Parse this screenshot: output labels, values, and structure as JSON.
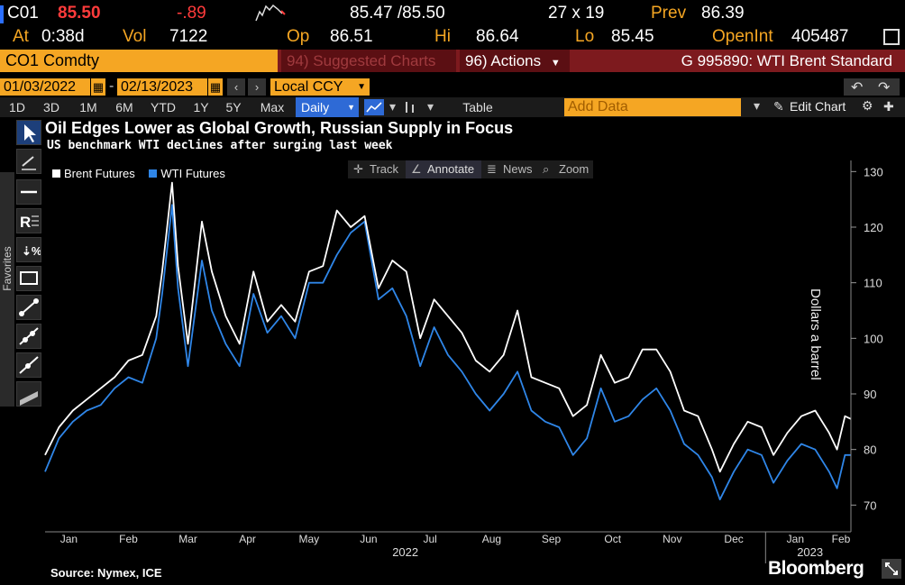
{
  "quote": {
    "ticker": "C01",
    "last": "85.50",
    "change": "-.89",
    "bid_ask": "85.47 /85.50",
    "size": "27 x 19",
    "prev_label": "Prev",
    "prev_value": "86.39"
  },
  "stats": {
    "at_label": "At",
    "at_value": "0:38d",
    "vol_label": "Vol",
    "vol_value": "7122",
    "op_label": "Op",
    "op_value": "86.51",
    "hi_label": "Hi",
    "hi_value": "86.64",
    "lo_label": "Lo",
    "lo_value": "85.45",
    "oi_label": "OpenInt",
    "oi_value": "405487"
  },
  "security_bar": {
    "security": "CO1 Comdty",
    "suggested": "94) Suggested Charts",
    "actions": "96) Actions",
    "page": "G 995890: WTI Brent Standard"
  },
  "date_range": {
    "start": "01/03/2022",
    "end": "02/13/2023",
    "currency": "Local CCY"
  },
  "toolbar": {
    "periods": [
      "1D",
      "3D",
      "1M",
      "6M",
      "YTD",
      "1Y",
      "5Y",
      "Max"
    ],
    "frequency": "Daily",
    "table": "Table",
    "add_data_placeholder": "Add Data",
    "edit_chart": "Edit Chart"
  },
  "sidebar": {
    "favorites": "Favorites"
  },
  "chart_tools": [
    "Track",
    "Annotate",
    "News",
    "Zoom"
  ],
  "colors": {
    "brent": "#ffffff",
    "wti": "#2f86e8",
    "accent": "#f5a623",
    "bar_red": "#7d1a1e"
  },
  "footer": {
    "source": "Source: Nymex, ICE",
    "brand": "Bloomberg"
  },
  "chart_data": {
    "type": "line",
    "title": "Oil Edges Lower as Global Growth, Russian Supply in Focus",
    "subtitle": "US benchmark WTI declines after surging last week",
    "ylabel": "Dollars a barrel",
    "ylim": [
      66,
      132
    ],
    "yticks": [
      70,
      80,
      90,
      100,
      110,
      120,
      130
    ],
    "x_ticks": [
      {
        "label": "Jan",
        "date": "2022-01-15"
      },
      {
        "label": "Feb",
        "date": "2022-02-14"
      },
      {
        "label": "Mar",
        "date": "2022-03-16"
      },
      {
        "label": "Apr",
        "date": "2022-04-15"
      },
      {
        "label": "May",
        "date": "2022-05-16"
      },
      {
        "label": "Jun",
        "date": "2022-06-15"
      },
      {
        "label": "Jul",
        "date": "2022-07-16"
      },
      {
        "label": "Aug",
        "date": "2022-08-16"
      },
      {
        "label": "Sep",
        "date": "2022-09-15"
      },
      {
        "label": "Oct",
        "date": "2022-10-16"
      },
      {
        "label": "Nov",
        "date": "2022-11-15"
      },
      {
        "label": "Dec",
        "date": "2022-12-16"
      },
      {
        "label": "Jan",
        "date": "2023-01-16"
      },
      {
        "label": "Feb",
        "date": "2023-02-08"
      }
    ],
    "year_labels": [
      "2022",
      "2023"
    ],
    "x_range": [
      "2022-01-03",
      "2023-02-13"
    ],
    "legend": {
      "placement": "top-left"
    },
    "series": [
      {
        "name": "Brent Futures",
        "points": [
          [
            "2022-01-03",
            79
          ],
          [
            "2022-01-10",
            84
          ],
          [
            "2022-01-17",
            87
          ],
          [
            "2022-01-24",
            89
          ],
          [
            "2022-01-31",
            91
          ],
          [
            "2022-02-07",
            93
          ],
          [
            "2022-02-14",
            96
          ],
          [
            "2022-02-21",
            97
          ],
          [
            "2022-02-28",
            104
          ],
          [
            "2022-03-03",
            112
          ],
          [
            "2022-03-08",
            128
          ],
          [
            "2022-03-11",
            113
          ],
          [
            "2022-03-16",
            99
          ],
          [
            "2022-03-23",
            121
          ],
          [
            "2022-03-28",
            112
          ],
          [
            "2022-04-04",
            104
          ],
          [
            "2022-04-11",
            99
          ],
          [
            "2022-04-18",
            112
          ],
          [
            "2022-04-25",
            103
          ],
          [
            "2022-05-02",
            106
          ],
          [
            "2022-05-09",
            103
          ],
          [
            "2022-05-16",
            112
          ],
          [
            "2022-05-23",
            113
          ],
          [
            "2022-05-30",
            123
          ],
          [
            "2022-06-06",
            120
          ],
          [
            "2022-06-13",
            122
          ],
          [
            "2022-06-20",
            109
          ],
          [
            "2022-06-27",
            114
          ],
          [
            "2022-07-04",
            112
          ],
          [
            "2022-07-11",
            100
          ],
          [
            "2022-07-18",
            107
          ],
          [
            "2022-07-25",
            104
          ],
          [
            "2022-08-01",
            101
          ],
          [
            "2022-08-08",
            96
          ],
          [
            "2022-08-15",
            94
          ],
          [
            "2022-08-22",
            97
          ],
          [
            "2022-08-29",
            105
          ],
          [
            "2022-09-05",
            93
          ],
          [
            "2022-09-12",
            92
          ],
          [
            "2022-09-19",
            91
          ],
          [
            "2022-09-26",
            86
          ],
          [
            "2022-10-03",
            88
          ],
          [
            "2022-10-10",
            97
          ],
          [
            "2022-10-17",
            92
          ],
          [
            "2022-10-24",
            93
          ],
          [
            "2022-10-31",
            98
          ],
          [
            "2022-11-07",
            98
          ],
          [
            "2022-11-14",
            94
          ],
          [
            "2022-11-21",
            87
          ],
          [
            "2022-11-28",
            86
          ],
          [
            "2022-12-05",
            80
          ],
          [
            "2022-12-09",
            76
          ],
          [
            "2022-12-16",
            81
          ],
          [
            "2022-12-23",
            85
          ],
          [
            "2022-12-30",
            84
          ],
          [
            "2023-01-05",
            79
          ],
          [
            "2023-01-12",
            83
          ],
          [
            "2023-01-19",
            86
          ],
          [
            "2023-01-26",
            87
          ],
          [
            "2023-02-02",
            83
          ],
          [
            "2023-02-06",
            80
          ],
          [
            "2023-02-10",
            86
          ],
          [
            "2023-02-13",
            85.5
          ]
        ]
      },
      {
        "name": "WTI Futures",
        "points": [
          [
            "2022-01-03",
            76
          ],
          [
            "2022-01-10",
            82
          ],
          [
            "2022-01-17",
            85
          ],
          [
            "2022-01-24",
            87
          ],
          [
            "2022-01-31",
            88
          ],
          [
            "2022-02-07",
            91
          ],
          [
            "2022-02-14",
            93
          ],
          [
            "2022-02-21",
            92
          ],
          [
            "2022-02-28",
            100
          ],
          [
            "2022-03-03",
            108
          ],
          [
            "2022-03-08",
            124
          ],
          [
            "2022-03-11",
            109
          ],
          [
            "2022-03-16",
            95
          ],
          [
            "2022-03-23",
            114
          ],
          [
            "2022-03-28",
            105
          ],
          [
            "2022-04-04",
            99
          ],
          [
            "2022-04-11",
            95
          ],
          [
            "2022-04-18",
            108
          ],
          [
            "2022-04-25",
            101
          ],
          [
            "2022-05-02",
            104
          ],
          [
            "2022-05-09",
            100
          ],
          [
            "2022-05-16",
            110
          ],
          [
            "2022-05-23",
            110
          ],
          [
            "2022-05-30",
            115
          ],
          [
            "2022-06-06",
            119
          ],
          [
            "2022-06-13",
            121
          ],
          [
            "2022-06-20",
            107
          ],
          [
            "2022-06-27",
            109
          ],
          [
            "2022-07-04",
            104
          ],
          [
            "2022-07-11",
            95
          ],
          [
            "2022-07-18",
            102
          ],
          [
            "2022-07-25",
            97
          ],
          [
            "2022-08-01",
            94
          ],
          [
            "2022-08-08",
            90
          ],
          [
            "2022-08-15",
            87
          ],
          [
            "2022-08-22",
            90
          ],
          [
            "2022-08-29",
            94
          ],
          [
            "2022-09-05",
            87
          ],
          [
            "2022-09-12",
            85
          ],
          [
            "2022-09-19",
            84
          ],
          [
            "2022-09-26",
            79
          ],
          [
            "2022-10-03",
            82
          ],
          [
            "2022-10-10",
            91
          ],
          [
            "2022-10-17",
            85
          ],
          [
            "2022-10-24",
            86
          ],
          [
            "2022-10-31",
            89
          ],
          [
            "2022-11-07",
            91
          ],
          [
            "2022-11-14",
            87
          ],
          [
            "2022-11-21",
            81
          ],
          [
            "2022-11-28",
            79
          ],
          [
            "2022-12-05",
            75
          ],
          [
            "2022-12-09",
            71
          ],
          [
            "2022-12-16",
            76
          ],
          [
            "2022-12-23",
            80
          ],
          [
            "2022-12-30",
            79
          ],
          [
            "2023-01-05",
            74
          ],
          [
            "2023-01-12",
            78
          ],
          [
            "2023-01-19",
            81
          ],
          [
            "2023-01-26",
            80
          ],
          [
            "2023-02-02",
            76
          ],
          [
            "2023-02-06",
            73
          ],
          [
            "2023-02-10",
            79
          ],
          [
            "2023-02-13",
            79
          ]
        ]
      }
    ]
  }
}
